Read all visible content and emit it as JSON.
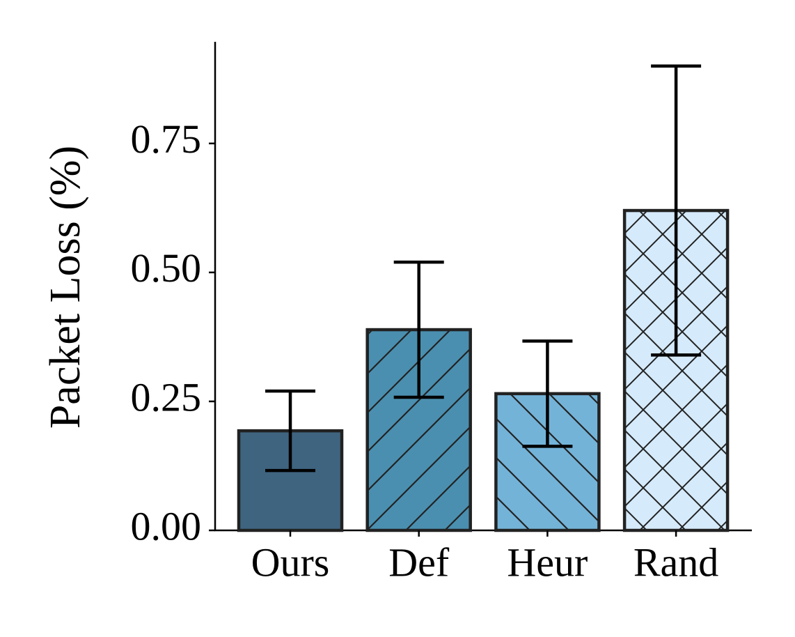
{
  "chart_data": {
    "type": "bar",
    "y_label": "Packet Loss (%)",
    "categories": [
      "Ours",
      "Def",
      "Heur",
      "Rand"
    ],
    "values": [
      0.193,
      0.389,
      0.265,
      0.62
    ],
    "errors": [
      0.077,
      0.131,
      0.102,
      0.28
    ],
    "colors": [
      "#3f6480",
      "#4a8fb0",
      "#74b3d8",
      "#d5eafa"
    ],
    "hatches": [
      "",
      "/",
      "\\",
      "x"
    ],
    "ylim": [
      0,
      0.947
    ],
    "yticks": [
      {
        "value": 0,
        "label": "0.00"
      },
      {
        "value": 0.25,
        "label": "0.25"
      },
      {
        "value": 0.5,
        "label": "0.50"
      },
      {
        "value": 0.75,
        "label": "0.75"
      }
    ]
  }
}
